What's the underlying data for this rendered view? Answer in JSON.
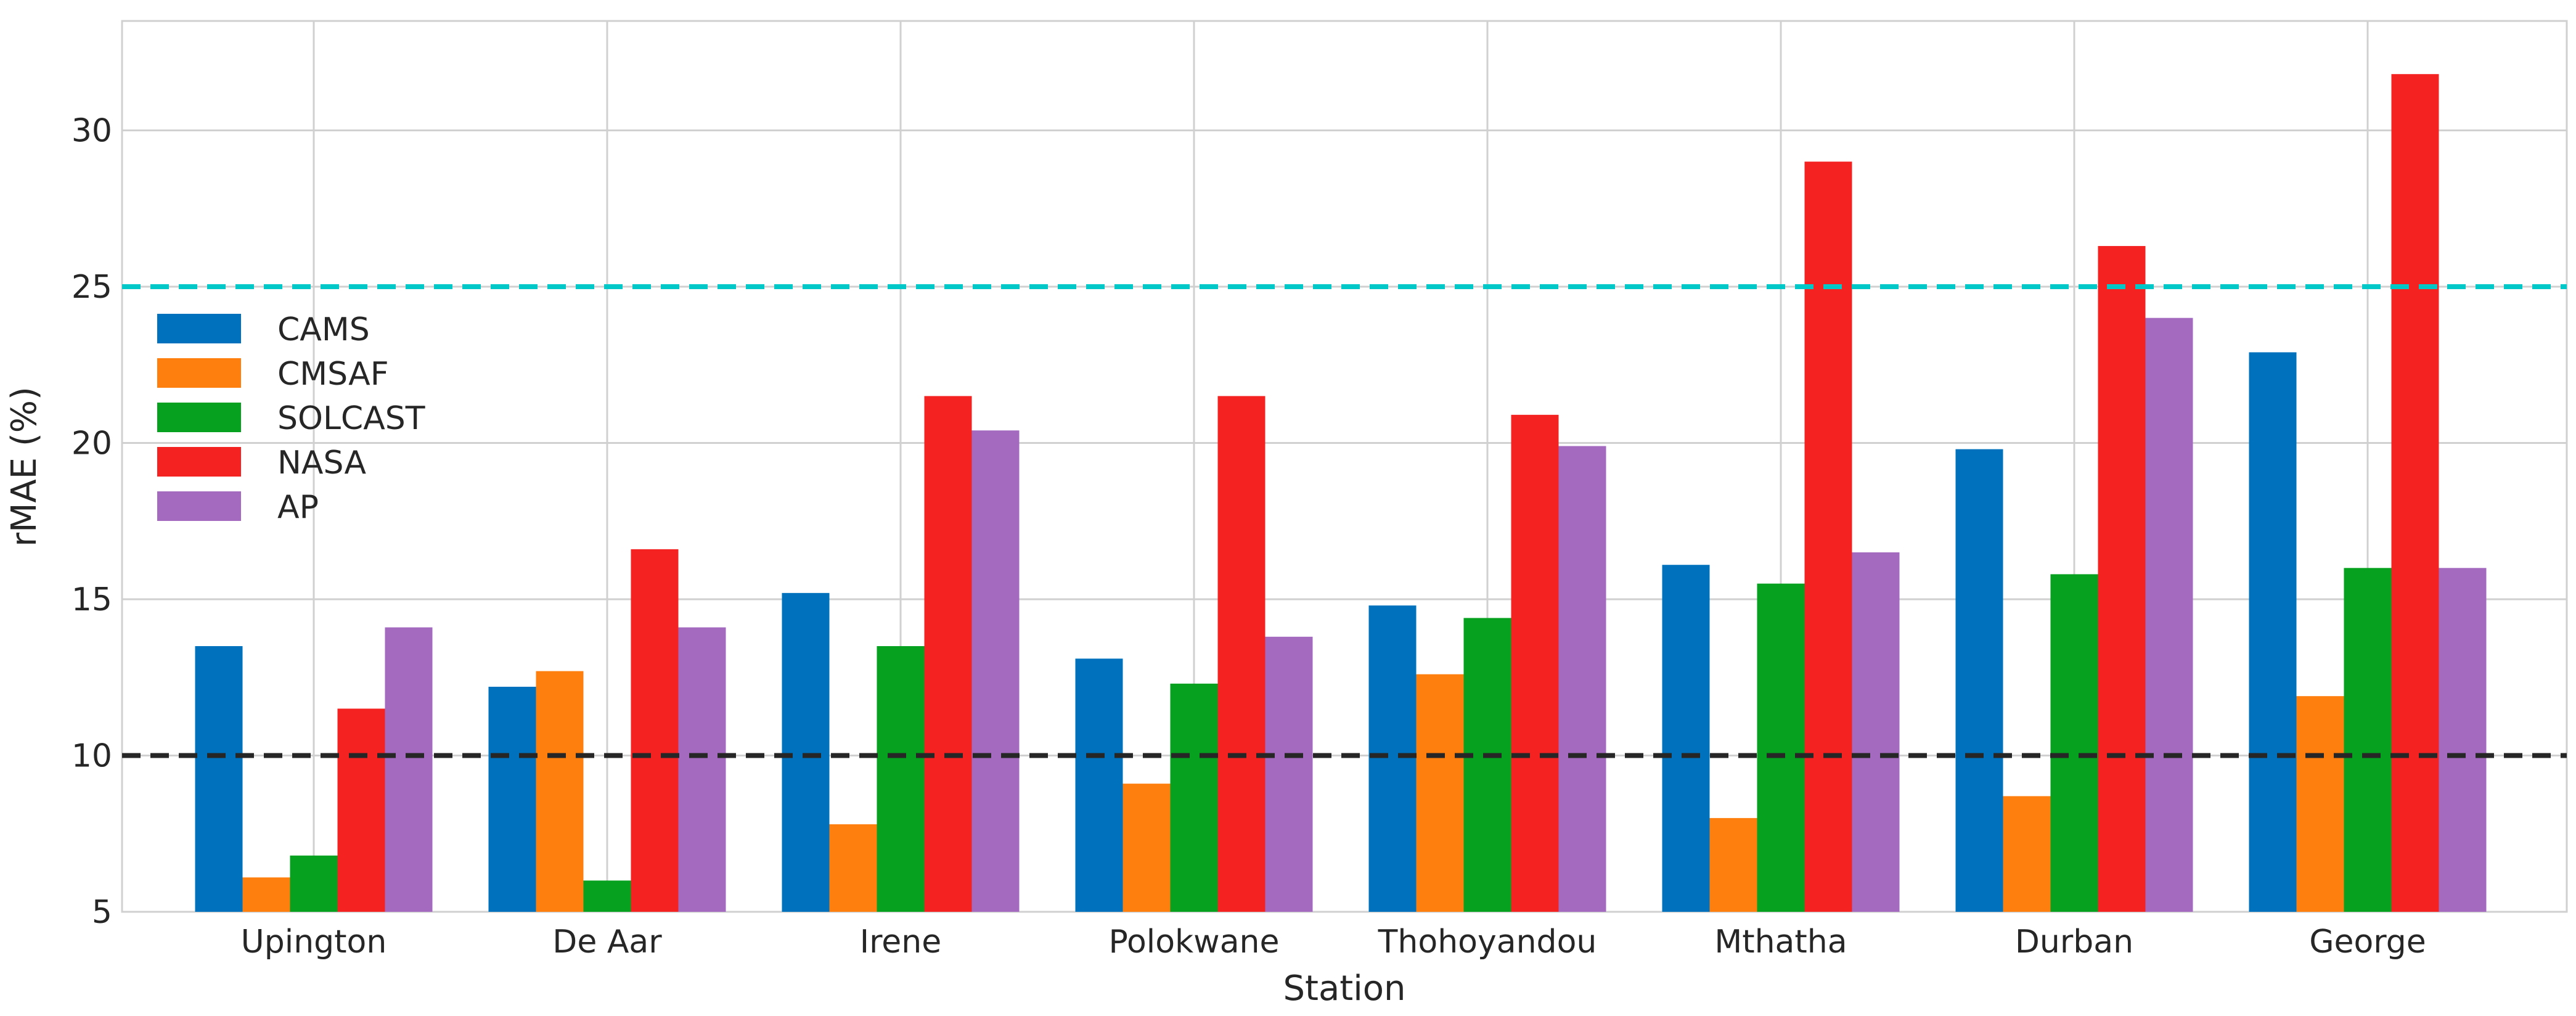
{
  "chart_data": {
    "type": "bar",
    "title": "",
    "xlabel": "Station",
    "ylabel": "rMAE (%)",
    "ylim": [
      5,
      33.5
    ],
    "yticks": [
      5,
      10,
      15,
      20,
      25,
      30
    ],
    "grid": true,
    "legend_position": "center-left",
    "categories": [
      "Upington",
      "De Aar",
      "Irene",
      "Polokwane",
      "Thohoyandou",
      "Mthatha",
      "Durban",
      "George"
    ],
    "series": [
      {
        "name": "CAMS",
        "color": "#0072bd",
        "values": [
          13.5,
          12.2,
          15.2,
          13.1,
          14.8,
          16.1,
          19.8,
          22.9
        ]
      },
      {
        "name": "CMSAF",
        "color": "#ff7f0e",
        "values": [
          6.1,
          12.7,
          7.8,
          9.1,
          12.6,
          8.0,
          8.7,
          11.9
        ]
      },
      {
        "name": "SOLCAST",
        "color": "#06a11e",
        "values": [
          6.8,
          6.0,
          13.5,
          12.3,
          14.4,
          15.5,
          15.8,
          16.0
        ]
      },
      {
        "name": "NASA",
        "color": "#f52222",
        "values": [
          11.5,
          16.6,
          21.5,
          21.5,
          20.9,
          29.0,
          26.3,
          31.8
        ]
      },
      {
        "name": "AP",
        "color": "#a36ac0",
        "values": [
          14.1,
          14.1,
          20.4,
          13.8,
          19.9,
          16.5,
          24.0,
          16.0
        ]
      }
    ],
    "reference_lines": [
      {
        "value": 25,
        "color": "#00c8c8",
        "style": "dashed"
      },
      {
        "value": 10,
        "color": "#262626",
        "style": "dashed"
      }
    ]
  }
}
